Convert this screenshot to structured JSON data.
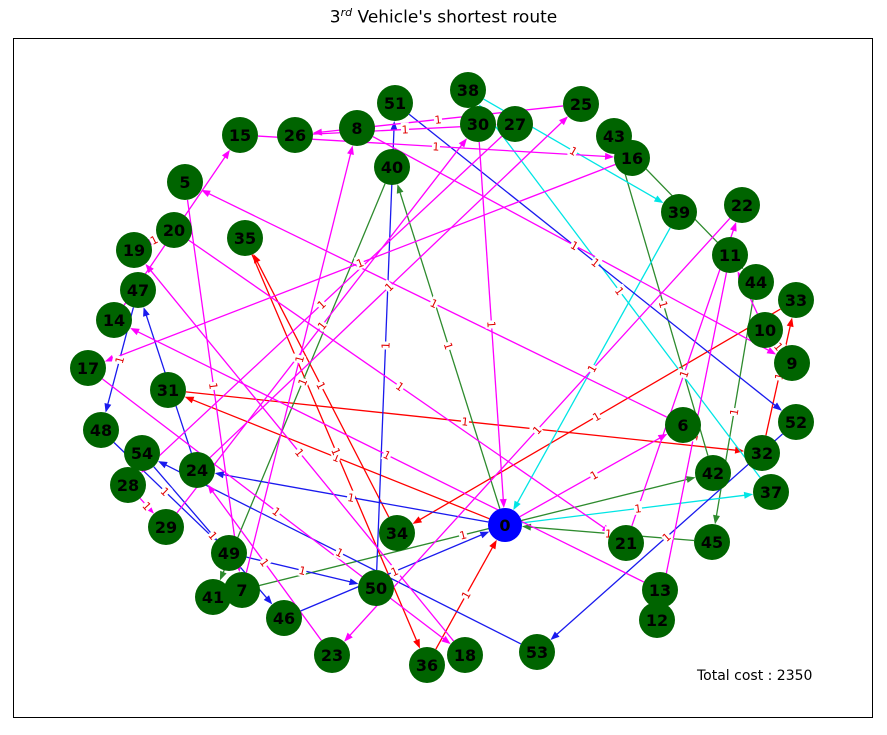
{
  "title": {
    "prefix": "3",
    "sup": "rd",
    "suffix": " Vehicle's shortest route"
  },
  "total_cost_label": "Total cost :  2350",
  "colors": {
    "node": "#006400",
    "depot": "#0000ff",
    "edge_label": "#e00000"
  },
  "nodes": [
    {
      "id": "0",
      "depot": true
    },
    {
      "id": "5"
    },
    {
      "id": "6"
    },
    {
      "id": "7"
    },
    {
      "id": "8"
    },
    {
      "id": "9"
    },
    {
      "id": "10"
    },
    {
      "id": "11"
    },
    {
      "id": "12"
    },
    {
      "id": "13"
    },
    {
      "id": "14"
    },
    {
      "id": "15"
    },
    {
      "id": "16"
    },
    {
      "id": "17"
    },
    {
      "id": "18"
    },
    {
      "id": "19"
    },
    {
      "id": "20"
    },
    {
      "id": "21"
    },
    {
      "id": "22"
    },
    {
      "id": "23"
    },
    {
      "id": "24"
    },
    {
      "id": "25"
    },
    {
      "id": "26"
    },
    {
      "id": "27"
    },
    {
      "id": "28"
    },
    {
      "id": "29"
    },
    {
      "id": "30"
    },
    {
      "id": "31"
    },
    {
      "id": "32"
    },
    {
      "id": "33"
    },
    {
      "id": "34"
    },
    {
      "id": "35"
    },
    {
      "id": "36"
    },
    {
      "id": "37"
    },
    {
      "id": "38"
    },
    {
      "id": "39"
    },
    {
      "id": "40"
    },
    {
      "id": "41"
    },
    {
      "id": "42"
    },
    {
      "id": "43"
    },
    {
      "id": "44"
    },
    {
      "id": "45"
    },
    {
      "id": "46"
    },
    {
      "id": "47"
    },
    {
      "id": "48"
    },
    {
      "id": "49"
    },
    {
      "id": "50"
    },
    {
      "id": "51"
    },
    {
      "id": "52"
    },
    {
      "id": "53"
    },
    {
      "id": "54"
    }
  ],
  "edges": [
    {
      "from": "0",
      "to": "31",
      "color": "#ff0000",
      "label": "1"
    },
    {
      "from": "31",
      "to": "32",
      "color": "#ff0000",
      "label": "1"
    },
    {
      "from": "32",
      "to": "33",
      "color": "#ff0000",
      "label": "1"
    },
    {
      "from": "33",
      "to": "34",
      "color": "#ff0000",
      "label": "1"
    },
    {
      "from": "34",
      "to": "35",
      "color": "#ff0000",
      "label": "1"
    },
    {
      "from": "35",
      "to": "36",
      "color": "#ff0000",
      "label": "1"
    },
    {
      "from": "36",
      "to": "0",
      "color": "#ff0000",
      "label": "1"
    },
    {
      "from": "0",
      "to": "40",
      "color": "#2e8b2e",
      "label": "1"
    },
    {
      "from": "40",
      "to": "41",
      "color": "#2e8b2e",
      "label": "1"
    },
    {
      "from": "41",
      "to": "42",
      "color": "#2e8b2e",
      "label": "1"
    },
    {
      "from": "42",
      "to": "43",
      "color": "#2e8b2e",
      "label": "1"
    },
    {
      "from": "43",
      "to": "44",
      "color": "#2e8b2e",
      "label": "1"
    },
    {
      "from": "44",
      "to": "45",
      "color": "#2e8b2e",
      "label": "1"
    },
    {
      "from": "45",
      "to": "0",
      "color": "#2e8b2e",
      "label": "1"
    },
    {
      "from": "0",
      "to": "37",
      "color": "#00e5e5",
      "label": "1"
    },
    {
      "from": "37",
      "to": "38",
      "color": "#00e5e5",
      "label": "1"
    },
    {
      "from": "38",
      "to": "39",
      "color": "#00e5e5",
      "label": "1"
    },
    {
      "from": "39",
      "to": "0",
      "color": "#00e5e5",
      "label": "1"
    },
    {
      "from": "0",
      "to": "24",
      "color": "#1a1aee",
      "label": "1"
    },
    {
      "from": "24",
      "to": "47",
      "color": "#1a1aee",
      "label": "1"
    },
    {
      "from": "47",
      "to": "48",
      "color": "#1a1aee",
      "label": "1"
    },
    {
      "from": "48",
      "to": "49",
      "color": "#1a1aee",
      "label": "1"
    },
    {
      "from": "49",
      "to": "50",
      "color": "#1a1aee",
      "label": "1"
    },
    {
      "from": "50",
      "to": "51",
      "color": "#1a1aee",
      "label": "1"
    },
    {
      "from": "51",
      "to": "52",
      "color": "#1a1aee",
      "label": "1"
    },
    {
      "from": "52",
      "to": "53",
      "color": "#1a1aee",
      "label": "1"
    },
    {
      "from": "53",
      "to": "54",
      "color": "#1a1aee",
      "label": "1"
    },
    {
      "from": "54",
      "to": "46",
      "color": "#1a1aee",
      "label": "1"
    },
    {
      "from": "46",
      "to": "0",
      "color": "#1a1aee",
      "label": "1"
    },
    {
      "from": "0",
      "to": "6",
      "color": "#ff00ff",
      "label": "1"
    },
    {
      "from": "6",
      "to": "5",
      "color": "#ff00ff",
      "label": "1"
    },
    {
      "from": "5",
      "to": "7",
      "color": "#ff00ff",
      "label": "1"
    },
    {
      "from": "7",
      "to": "8",
      "color": "#ff00ff",
      "label": "1"
    },
    {
      "from": "8",
      "to": "9",
      "color": "#ff00ff",
      "label": "1"
    },
    {
      "from": "9",
      "to": "10",
      "color": "#ff00ff",
      "label": "1"
    },
    {
      "from": "10",
      "to": "11",
      "color": "#ff00ff",
      "label": "1"
    },
    {
      "from": "11",
      "to": "12",
      "color": "#ff00ff",
      "label": "1"
    },
    {
      "from": "12",
      "to": "13",
      "color": "#ff00ff",
      "label": "1"
    },
    {
      "from": "13",
      "to": "14",
      "color": "#ff00ff",
      "label": "1"
    },
    {
      "from": "14",
      "to": "15",
      "color": "#ff00ff",
      "label": "1"
    },
    {
      "from": "15",
      "to": "16",
      "color": "#ff00ff",
      "label": "1"
    },
    {
      "from": "16",
      "to": "17",
      "color": "#ff00ff",
      "label": "1"
    },
    {
      "from": "17",
      "to": "18",
      "color": "#ff00ff",
      "label": "1"
    },
    {
      "from": "18",
      "to": "19",
      "color": "#ff00ff",
      "label": "1"
    },
    {
      "from": "19",
      "to": "20",
      "color": "#ff00ff",
      "label": "1"
    },
    {
      "from": "20",
      "to": "21",
      "color": "#ff00ff",
      "label": "1"
    },
    {
      "from": "21",
      "to": "22",
      "color": "#ff00ff",
      "label": "1"
    },
    {
      "from": "22",
      "to": "23",
      "color": "#ff00ff",
      "label": "1"
    },
    {
      "from": "23",
      "to": "24",
      "color": "#ff00ff",
      "label": "1"
    },
    {
      "from": "24",
      "to": "25",
      "color": "#ff00ff",
      "label": "1"
    },
    {
      "from": "25",
      "to": "26",
      "color": "#ff00ff",
      "label": "1"
    },
    {
      "from": "26",
      "to": "27",
      "color": "#ff00ff",
      "label": "1"
    },
    {
      "from": "27",
      "to": "28",
      "color": "#ff00ff",
      "label": "1"
    },
    {
      "from": "28",
      "to": "29",
      "color": "#ff00ff",
      "label": "1"
    },
    {
      "from": "29",
      "to": "30",
      "color": "#ff00ff",
      "label": "1"
    },
    {
      "from": "30",
      "to": "0",
      "color": "#ff00ff",
      "label": "1"
    }
  ]
}
